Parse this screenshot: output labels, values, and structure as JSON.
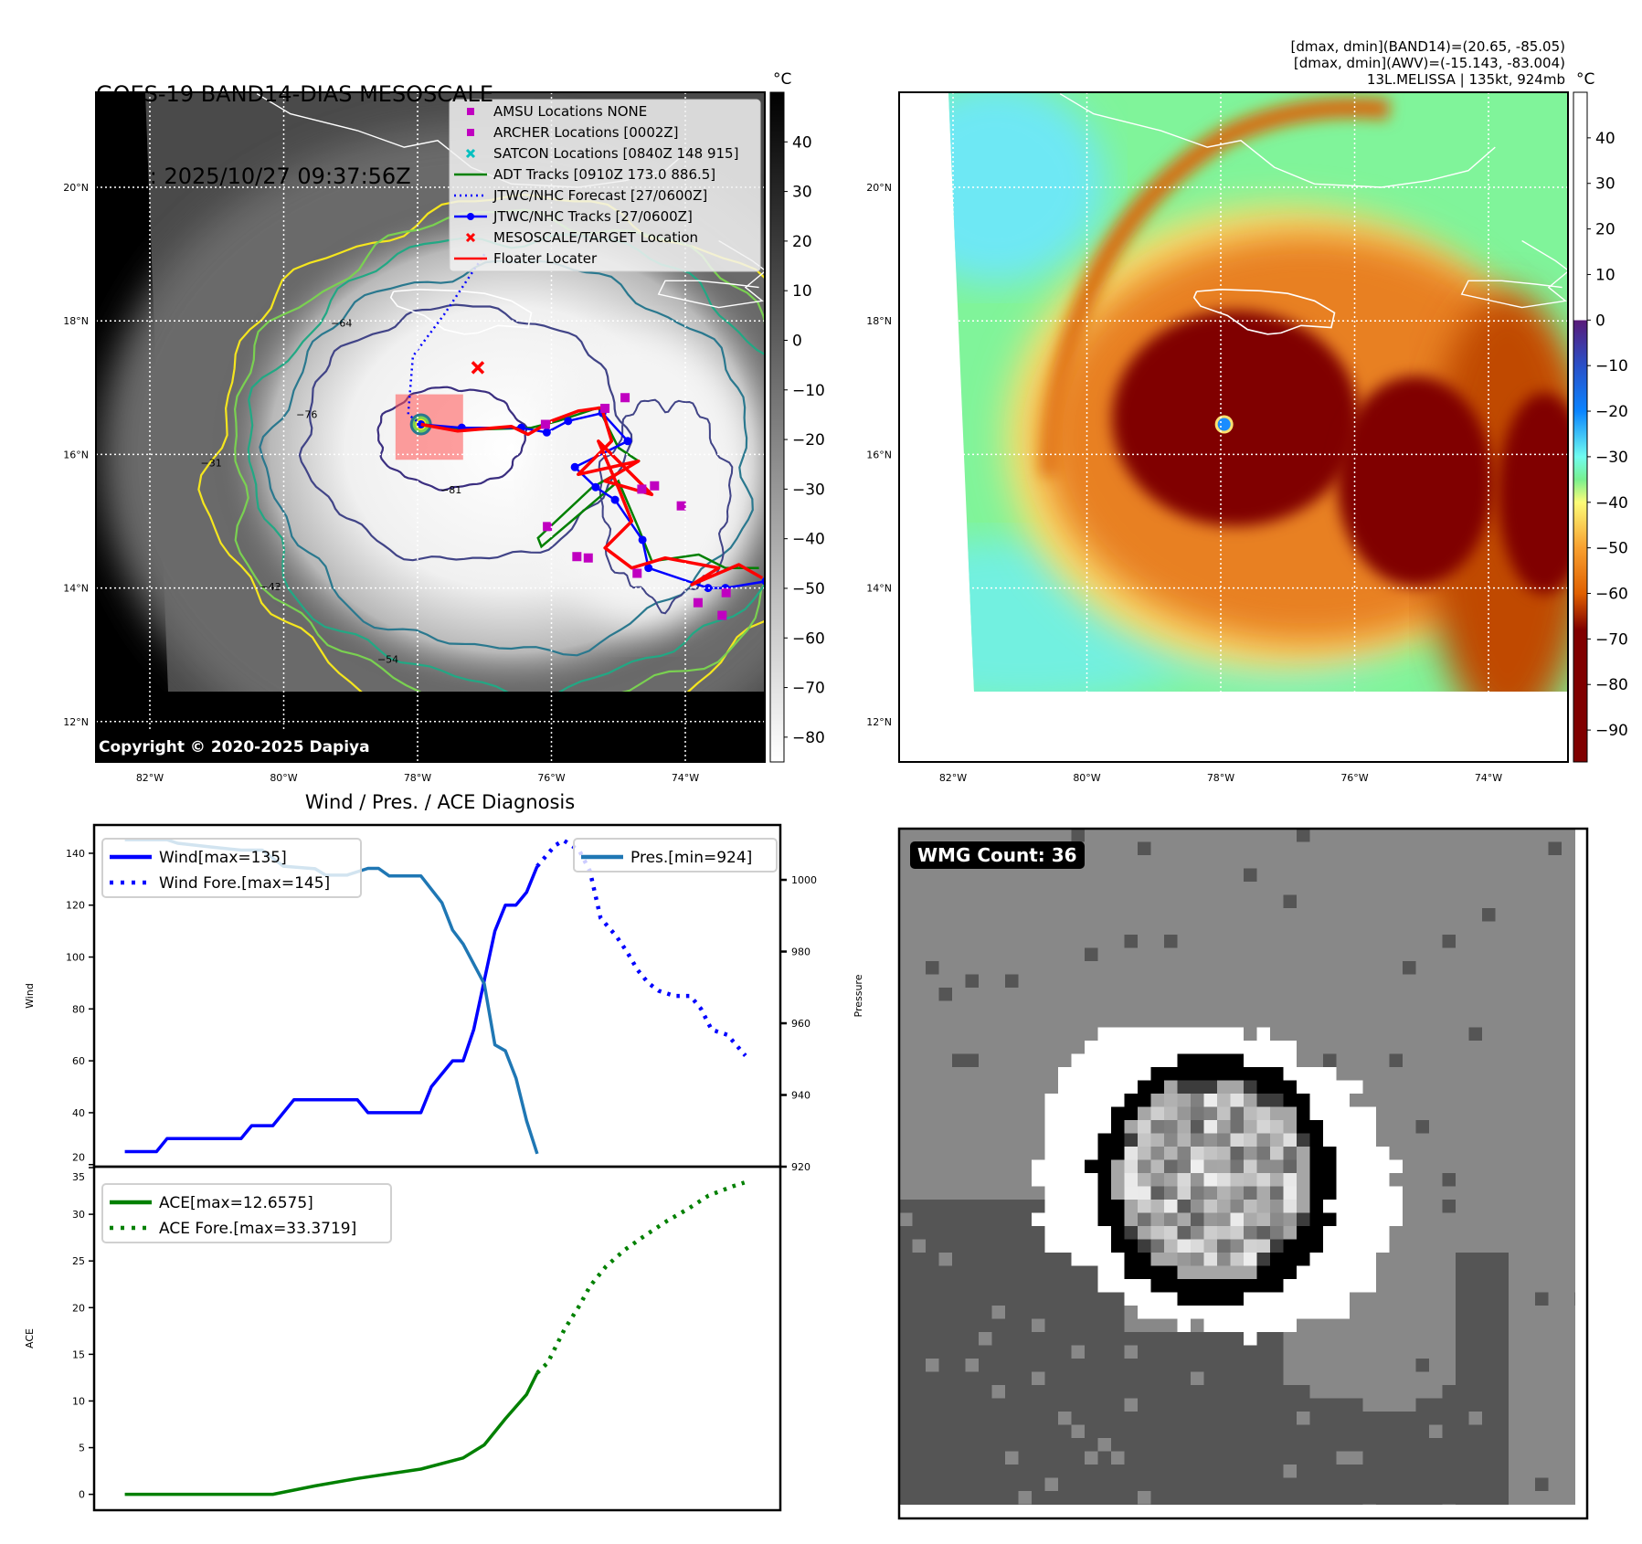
{
  "header": {
    "title": "GOES-19 BAND14-DIAS MESOSCALE",
    "time": "Time: 2025/10/27 09:37:56Z",
    "info": [
      "[dmax, dmin](BAND14)=(20.65, -85.05)",
      "[dmax, dmin](AWV)=(-15.143, -83.004)",
      "13L.MELISSA | 135kt, 924mb"
    ]
  },
  "maps": {
    "lat_labels": [
      {
        "lat": 20,
        "text": "20°N"
      },
      {
        "lat": 18,
        "text": "18°N"
      },
      {
        "lat": 16,
        "text": "16°N"
      },
      {
        "lat": 14,
        "text": "14°N"
      },
      {
        "lat": 12,
        "text": "12°N"
      }
    ],
    "lon_labels": [
      {
        "lon": -82,
        "text": "82°W"
      },
      {
        "lon": -80,
        "text": "80°W"
      },
      {
        "lon": -78,
        "text": "78°W"
      },
      {
        "lon": -76,
        "text": "76°W"
      },
      {
        "lon": -74,
        "text": "74°W"
      }
    ],
    "extent": {
      "lon": [
        -82.8,
        -72.8
      ],
      "lat": [
        11.4,
        21.4
      ]
    },
    "storm_center": {
      "lon": -77.95,
      "lat": 16.45
    },
    "jamaica": [
      [
        -78.36,
        18.44
      ],
      [
        -78.0,
        18.47
      ],
      [
        -77.4,
        18.45
      ],
      [
        -77.0,
        18.41
      ],
      [
        -76.6,
        18.3
      ],
      [
        -76.3,
        18.12
      ],
      [
        -76.35,
        17.9
      ],
      [
        -76.8,
        17.93
      ],
      [
        -77.1,
        17.82
      ],
      [
        -77.3,
        17.8
      ],
      [
        -77.6,
        17.87
      ],
      [
        -77.9,
        18.08
      ],
      [
        -78.3,
        18.22
      ],
      [
        -78.4,
        18.35
      ],
      [
        -78.36,
        18.44
      ]
    ],
    "cuba_coast": [
      [
        -80.4,
        21.4
      ],
      [
        -79.9,
        21.1
      ],
      [
        -78.9,
        20.85
      ],
      [
        -78.2,
        20.6
      ],
      [
        -77.7,
        20.7
      ],
      [
        -77.2,
        20.3
      ],
      [
        -76.6,
        20.05
      ],
      [
        -75.6,
        20.0
      ],
      [
        -74.9,
        20.1
      ],
      [
        -74.3,
        20.25
      ],
      [
        -73.9,
        20.6
      ]
    ],
    "hispaniola_coast": [
      [
        -73.5,
        19.2
      ],
      [
        -73.0,
        18.9
      ],
      [
        -72.8,
        18.75
      ],
      [
        -73.1,
        18.5
      ],
      [
        -72.85,
        18.3
      ],
      [
        -73.5,
        18.2
      ],
      [
        -74.4,
        18.4
      ],
      [
        -74.3,
        18.6
      ],
      [
        -73.8,
        18.6
      ],
      [
        -73.3,
        18.55
      ],
      [
        -72.9,
        18.5
      ]
    ]
  },
  "map_ir": {
    "unit": "°C",
    "colorbar": {
      "range": [
        -85,
        50
      ],
      "ticks": [
        40,
        30,
        20,
        10,
        0,
        -10,
        -20,
        -30,
        -40,
        -50,
        -60,
        -70,
        -80
      ],
      "tick_labels": [
        "40",
        "30",
        "20",
        "10",
        "0",
        "−10",
        "−20",
        "−30",
        "−40",
        "−50",
        "−60",
        "−70",
        "−80"
      ]
    },
    "copyright": "Copyright © 2020-2025 Dapiya",
    "legend": [
      {
        "label": "AMSU Locations NONE",
        "marker": "square",
        "color": "#c000c0"
      },
      {
        "label": "ARCHER Locations [0002Z]",
        "marker": "square",
        "color": "#c000c0"
      },
      {
        "label": "SATCON Locations [0840Z 148 915]",
        "marker": "x",
        "color": "#00c0c0"
      },
      {
        "label": "ADT Tracks [0910Z 173.0 886.5]",
        "marker": "line",
        "color": "#008000"
      },
      {
        "label": "JTWC/NHC Forecast [27/0600Z]",
        "marker": "dotted",
        "color": "#0000ff"
      },
      {
        "label": "JTWC/NHC Tracks [27/0600Z]",
        "marker": "line-dot",
        "color": "#0000ff"
      },
      {
        "label": "MESOSCALE/TARGET Location",
        "marker": "x",
        "color": "#ff0000"
      },
      {
        "label": "Floater Locater",
        "marker": "line",
        "color": "#ff0000"
      }
    ],
    "contours": [
      {
        "level": -31,
        "label": "−31",
        "color": "#f5e61e"
      },
      {
        "level": -43,
        "label": "−43",
        "color": "#7ad151"
      },
      {
        "level": -54,
        "label": "−54",
        "color": "#22a884"
      },
      {
        "level": -64,
        "label": "−64",
        "color": "#2a788e"
      },
      {
        "level": -76,
        "label": "−76",
        "color": "#414487"
      },
      {
        "level": -81,
        "label": "−81",
        "color": "#3b2f80"
      }
    ],
    "target": {
      "lon": -77.1,
      "lat": 17.3
    },
    "floater_box": {
      "lon": [
        -78.33,
        -77.32
      ],
      "lat": [
        15.92,
        16.9
      ]
    },
    "forecast_track": [
      [
        -77.95,
        16.45
      ],
      [
        -78.14,
        16.6
      ],
      [
        -78.07,
        17.47
      ],
      [
        -77.6,
        18.1
      ],
      [
        -77.2,
        18.7
      ],
      [
        -77.0,
        19.0
      ]
    ],
    "best_track": [
      [
        -77.95,
        16.45
      ],
      [
        -77.34,
        16.4
      ],
      [
        -76.45,
        16.4
      ],
      [
        -76.07,
        16.33
      ],
      [
        -75.75,
        16.5
      ],
      [
        -75.24,
        16.62
      ],
      [
        -74.86,
        16.2
      ],
      [
        -75.65,
        15.81
      ],
      [
        -75.34,
        15.51
      ],
      [
        -75.05,
        15.32
      ],
      [
        -74.64,
        14.72
      ],
      [
        -74.55,
        14.3
      ],
      [
        -73.66,
        14.0
      ],
      [
        -73.4,
        14.0
      ],
      [
        -72.8,
        14.1
      ]
    ],
    "adt_track": [
      [
        -77.95,
        16.45
      ],
      [
        -77.2,
        16.37
      ],
      [
        -76.3,
        16.4
      ],
      [
        -75.9,
        16.5
      ],
      [
        -75.3,
        16.7
      ],
      [
        -75.0,
        16.1
      ],
      [
        -74.7,
        15.9
      ],
      [
        -75.4,
        15.5
      ],
      [
        -76.2,
        14.75
      ],
      [
        -76.15,
        14.62
      ],
      [
        -75.0,
        15.6
      ],
      [
        -74.7,
        14.9
      ],
      [
        -74.5,
        14.4
      ],
      [
        -73.8,
        14.5
      ],
      [
        -73.4,
        14.3
      ],
      [
        -72.9,
        14.3
      ]
    ],
    "floater_track": [
      [
        -77.95,
        16.45
      ],
      [
        -77.4,
        16.35
      ],
      [
        -76.6,
        16.42
      ],
      [
        -76.35,
        16.3
      ],
      [
        -76.0,
        16.5
      ],
      [
        -75.6,
        16.65
      ],
      [
        -75.25,
        16.7
      ],
      [
        -75.1,
        16.2
      ],
      [
        -75.6,
        15.7
      ],
      [
        -74.7,
        15.9
      ],
      [
        -75.2,
        15.6
      ],
      [
        -74.5,
        15.4
      ],
      [
        -75.3,
        16.2
      ],
      [
        -75.0,
        15.5
      ],
      [
        -74.8,
        15.0
      ],
      [
        -75.2,
        14.6
      ],
      [
        -74.8,
        14.3
      ],
      [
        -74.3,
        14.45
      ],
      [
        -73.5,
        14.3
      ],
      [
        -73.9,
        14.05
      ],
      [
        -73.2,
        14.35
      ],
      [
        -72.85,
        14.15
      ]
    ],
    "archer_points": [
      [
        -76.09,
        16.45
      ],
      [
        -75.2,
        16.69
      ],
      [
        -74.9,
        16.85
      ],
      [
        -74.65,
        15.48
      ],
      [
        -74.46,
        15.53
      ],
      [
        -74.06,
        15.23
      ],
      [
        -75.62,
        14.47
      ],
      [
        -75.45,
        14.45
      ],
      [
        -74.72,
        14.22
      ],
      [
        -73.81,
        13.78
      ],
      [
        -73.45,
        13.59
      ],
      [
        -73.39,
        13.93
      ],
      [
        -76.06,
        14.92
      ]
    ]
  },
  "map_awv": {
    "unit": "°C",
    "colorbar": {
      "range": [
        -97,
        50
      ],
      "ticks": [
        40,
        30,
        20,
        10,
        0,
        -10,
        -20,
        -30,
        -40,
        -50,
        -60,
        -70,
        -80,
        -90
      ],
      "tick_labels": [
        "40",
        "30",
        "20",
        "10",
        "0",
        "−10",
        "−20",
        "−30",
        "−40",
        "−50",
        "−60",
        "−70",
        "−80",
        "−90"
      ],
      "stops": [
        {
          "t": 50,
          "c": "#ffffff"
        },
        {
          "t": 0.01,
          "c": "#ffffff"
        },
        {
          "t": 0,
          "c": "#5a1a78"
        },
        {
          "t": -10,
          "c": "#2a50c8"
        },
        {
          "t": -20,
          "c": "#0a84ff"
        },
        {
          "t": -30,
          "c": "#70fcf0"
        },
        {
          "t": -35,
          "c": "#78f090"
        },
        {
          "t": -40,
          "c": "#fcfc78"
        },
        {
          "t": -50,
          "c": "#f8a030"
        },
        {
          "t": -60,
          "c": "#e06000"
        },
        {
          "t": -68,
          "c": "#800000"
        },
        {
          "t": -97,
          "c": "#800000"
        }
      ]
    },
    "core_centers": [
      {
        "lon": -77.78,
        "lat": 16.54
      },
      {
        "lon": -75.1,
        "lat": 15.6
      }
    ]
  },
  "chart_title": "Wind / Pres. / ACE Diagnosis",
  "chart_data": [
    {
      "type": "line",
      "title": "Wind / Pres. / ACE Diagnosis",
      "xlabel": "",
      "ylabel": "Wind",
      "ylabel_right": "Pressure",
      "xlim": [
        -2.9,
        62
      ],
      "ylim": [
        19.2,
        150.9
      ],
      "ylim_right": [
        920,
        1015.3
      ],
      "yticks": [
        20,
        40,
        60,
        80,
        100,
        120,
        140
      ],
      "yticks_right": [
        920,
        940,
        960,
        980,
        1000
      ],
      "series": [
        {
          "name": "Wind[max=135]",
          "axis": "left",
          "style": "solid",
          "color": "#0000ff",
          "x": [
            0,
            3,
            4,
            11,
            12,
            14,
            16,
            22,
            23,
            28,
            29,
            31,
            32,
            33,
            35,
            36,
            37,
            38,
            39
          ],
          "y": [
            25,
            25,
            30,
            30,
            35,
            35,
            45,
            45,
            40,
            40,
            50,
            60,
            60,
            72,
            110,
            120,
            120,
            125,
            135
          ]
        },
        {
          "name": "Wind Fore.[max=145]",
          "axis": "left",
          "style": "dotted",
          "color": "#0000ff",
          "x": [
            39,
            40.7,
            41.5,
            43,
            44,
            45,
            46.5,
            47.5,
            48.5,
            49.5,
            50.5,
            52,
            53.5,
            54.5,
            55.5,
            57,
            58.7
          ],
          "y": [
            135,
            143,
            145,
            141,
            133,
            115,
            108,
            102,
            95,
            90,
            87,
            85,
            85,
            80,
            72,
            70,
            62
          ]
        },
        {
          "name": "Pres.[min=924]",
          "axis": "right",
          "style": "solid",
          "color": "#1f77b4",
          "x": [
            0,
            4,
            5,
            8,
            11,
            13,
            15,
            18,
            19,
            21,
            23,
            24,
            25,
            28,
            30,
            31,
            32,
            34,
            35,
            36,
            37,
            38,
            39
          ],
          "y": [
            1011.2,
            1011.2,
            1010.2,
            1009.2,
            1008.3,
            1008.3,
            1003.8,
            1003.1,
            1001.3,
            1001.3,
            1003.2,
            1003.2,
            1001.1,
            1001.1,
            993.6,
            986,
            982.1,
            971,
            954,
            952.3,
            944.7,
            932.8,
            923.6
          ]
        }
      ],
      "legend_left": [
        "Wind[max=135]",
        "Wind Fore.[max=145]"
      ],
      "legend_right": [
        "Pres.[min=924]"
      ]
    },
    {
      "type": "line",
      "title": "",
      "xlabel": "",
      "ylabel": "ACE",
      "xlim": [
        -2.9,
        62
      ],
      "ylim": [
        -1.7,
        35.1
      ],
      "yticks": [
        0,
        5,
        10,
        15,
        20,
        25,
        30,
        35
      ],
      "series": [
        {
          "name": "ACE[max=12.6575]",
          "style": "solid",
          "color": "#008000",
          "x": [
            0,
            14,
            18,
            22,
            28,
            32,
            34,
            36,
            38,
            39
          ],
          "y": [
            0,
            0,
            0.9,
            1.7,
            2.7,
            3.9,
            5.3,
            8.1,
            10.7,
            13
          ]
        },
        {
          "name": "ACE Fore.[max=33.3719]",
          "style": "dotted",
          "color": "#008000",
          "x": [
            39,
            40,
            41.6,
            43,
            44,
            45.5,
            47.3,
            49.3,
            51.3,
            53.3,
            55.2,
            57.5,
            58.6
          ],
          "y": [
            13,
            14.1,
            17.7,
            20.2,
            22.3,
            24.4,
            26.2,
            27.8,
            29.3,
            30.6,
            32,
            33,
            33.4
          ]
        }
      ]
    }
  ],
  "wmg": {
    "label": "WMG Count: 36"
  }
}
